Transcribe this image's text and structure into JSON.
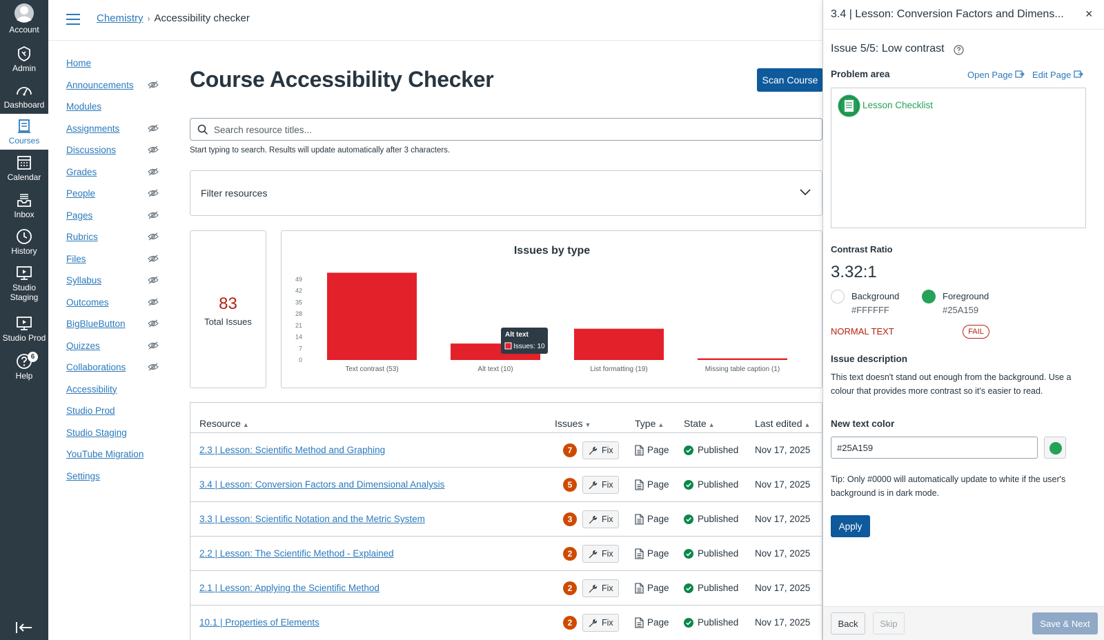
{
  "global_nav": {
    "account": "Account",
    "admin": "Admin",
    "dashboard": "Dashboard",
    "courses": "Courses",
    "calendar": "Calendar",
    "inbox": "Inbox",
    "history": "History",
    "studio_staging": "Studio Staging",
    "studio_prod": "Studio Prod",
    "help": "Help",
    "help_badge": "6"
  },
  "breadcrumb": {
    "course": "Chemistry",
    "current": "Accessibility checker"
  },
  "course_nav": [
    "Home",
    "Announcements",
    "Modules",
    "Assignments",
    "Discussions",
    "Grades",
    "People",
    "Pages",
    "Rubrics",
    "Files",
    "Syllabus",
    "Outcomes",
    "BigBlueButton",
    "Quizzes",
    "Collaborations",
    "Accessibility",
    "Studio Prod",
    "Studio Staging",
    "YouTube Migration",
    "Settings"
  ],
  "main": {
    "title": "Course Accessibility Checker",
    "scan_button": "Scan Course",
    "search_placeholder": "Search resource titles...",
    "search_hint": "Start typing to search. Results will update automatically after 3 characters.",
    "filter_label": "Filter resources",
    "total_issues": "83",
    "total_label": "Total Issues"
  },
  "chart_data": {
    "type": "bar",
    "title": "Issues by type",
    "categories": [
      "Text contrast (53)",
      "Alt text (10)",
      "List formatting (19)",
      "Missing table caption (1)"
    ],
    "values": [
      53,
      10,
      19,
      1
    ],
    "y_ticks": [
      "49",
      "42",
      "35",
      "28",
      "21",
      "14",
      "7",
      "0"
    ],
    "bar_color": "#E3212A",
    "tooltip": {
      "title": "Alt text",
      "label": "Issues: 10"
    }
  },
  "table": {
    "headers": {
      "resource": "Resource",
      "issues": "Issues",
      "type": "Type",
      "state": "State",
      "last_edited": "Last edited"
    },
    "fix_label": "Fix",
    "rows": [
      {
        "resource": "2.3 | Lesson: Scientific Method and Graphing",
        "issues": "7",
        "type": "Page",
        "state": "Published",
        "date": "Nov 17, 2025"
      },
      {
        "resource": "3.4 | Lesson: Conversion Factors and Dimensional Analysis",
        "issues": "5",
        "type": "Page",
        "state": "Published",
        "date": "Nov 17, 2025"
      },
      {
        "resource": "3.3 | Lesson: Scientific Notation and the Metric System",
        "issues": "3",
        "type": "Page",
        "state": "Published",
        "date": "Nov 17, 2025"
      },
      {
        "resource": "2.2 | Lesson: The Scientific Method - Explained",
        "issues": "2",
        "type": "Page",
        "state": "Published",
        "date": "Nov 17, 2025"
      },
      {
        "resource": "2.1 | Lesson: Applying the Scientific Method",
        "issues": "2",
        "type": "Page",
        "state": "Published",
        "date": "Nov 17, 2025"
      },
      {
        "resource": "10.1 | Properties of Elements",
        "issues": "2",
        "type": "Page",
        "state": "Published",
        "date": "Nov 17, 2025"
      }
    ]
  },
  "panel": {
    "title": "3.4 | Lesson: Conversion Factors and Dimens...",
    "close": "×",
    "issue": "Issue 5/5: Low contrast",
    "problem_area": "Problem area",
    "open_page": "Open Page",
    "edit_page": "Edit Page",
    "checklist": "Lesson Checklist",
    "contrast_label": "Contrast Ratio",
    "contrast_value": "3.32:1",
    "background_label": "Background",
    "background_hex": "#FFFFFF",
    "foreground_label": "Foreground",
    "foreground_hex": "#25A159",
    "normal_text": "NORMAL TEXT",
    "fail": "FAIL",
    "desc_label": "Issue description",
    "desc": "This text doesn't stand out enough from the background. Use a colour that provides more contrast so it's easier to read.",
    "new_color_label": "New text color",
    "new_color_value": "#25A159",
    "tip": "Tip: Only #0000 will automatically update to white if the user's background is in dark mode.",
    "apply": "Apply",
    "back": "Back",
    "skip": "Skip",
    "save_next": "Save & Next"
  }
}
